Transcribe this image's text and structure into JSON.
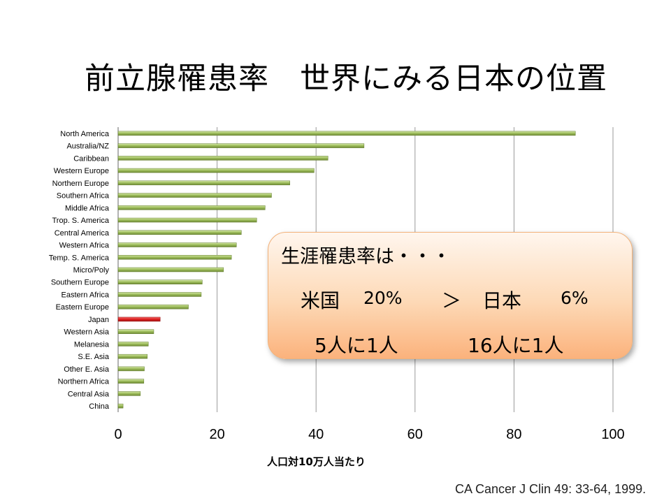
{
  "slide": {
    "title": "前立腺罹患率　世界にみる日本の位置",
    "callout": {
      "line1": "生涯罹患率は・・・",
      "us_label": "米国",
      "us_value": "20%",
      "compare": "＞",
      "jp_label": "日本",
      "jp_value": "6%",
      "us_ratio": "5人に1人",
      "jp_ratio": "16人に1人"
    },
    "source": "CA Cancer J Clin 49: 33-64, 1999."
  },
  "chart_data": {
    "type": "bar",
    "orientation": "horizontal",
    "categories": [
      "North America",
      "Australia/NZ",
      "Caribbean",
      "Western Europe",
      "Northern Europe",
      "Southern Africa",
      "Middle Africa",
      "Trop. S. America",
      "Central America",
      "Western Africa",
      "Temp. S. America",
      "Micro/Poly",
      "Southern Europe",
      "Eastern Africa",
      "Eastern Europe",
      "Japan",
      "Western Asia",
      "Melanesia",
      "S.E. Asia",
      "Other E. Asia",
      "Northern Africa",
      "Central Asia",
      "China"
    ],
    "values": [
      92.4,
      49.7,
      42.4,
      39.6,
      34.7,
      31.0,
      29.7,
      28.0,
      24.9,
      23.9,
      22.9,
      21.3,
      17.0,
      16.8,
      14.2,
      8.5,
      7.2,
      6.1,
      5.9,
      5.3,
      5.2,
      4.5,
      1.0
    ],
    "highlight": "Japan",
    "colors": {
      "bar": "#9bbb59",
      "highlight": "#e02020"
    },
    "xlabel": "人口対10万人当たり",
    "xlim": [
      0,
      100
    ],
    "xticks": [
      0,
      20,
      40,
      60,
      80,
      100
    ],
    "grid": true
  }
}
